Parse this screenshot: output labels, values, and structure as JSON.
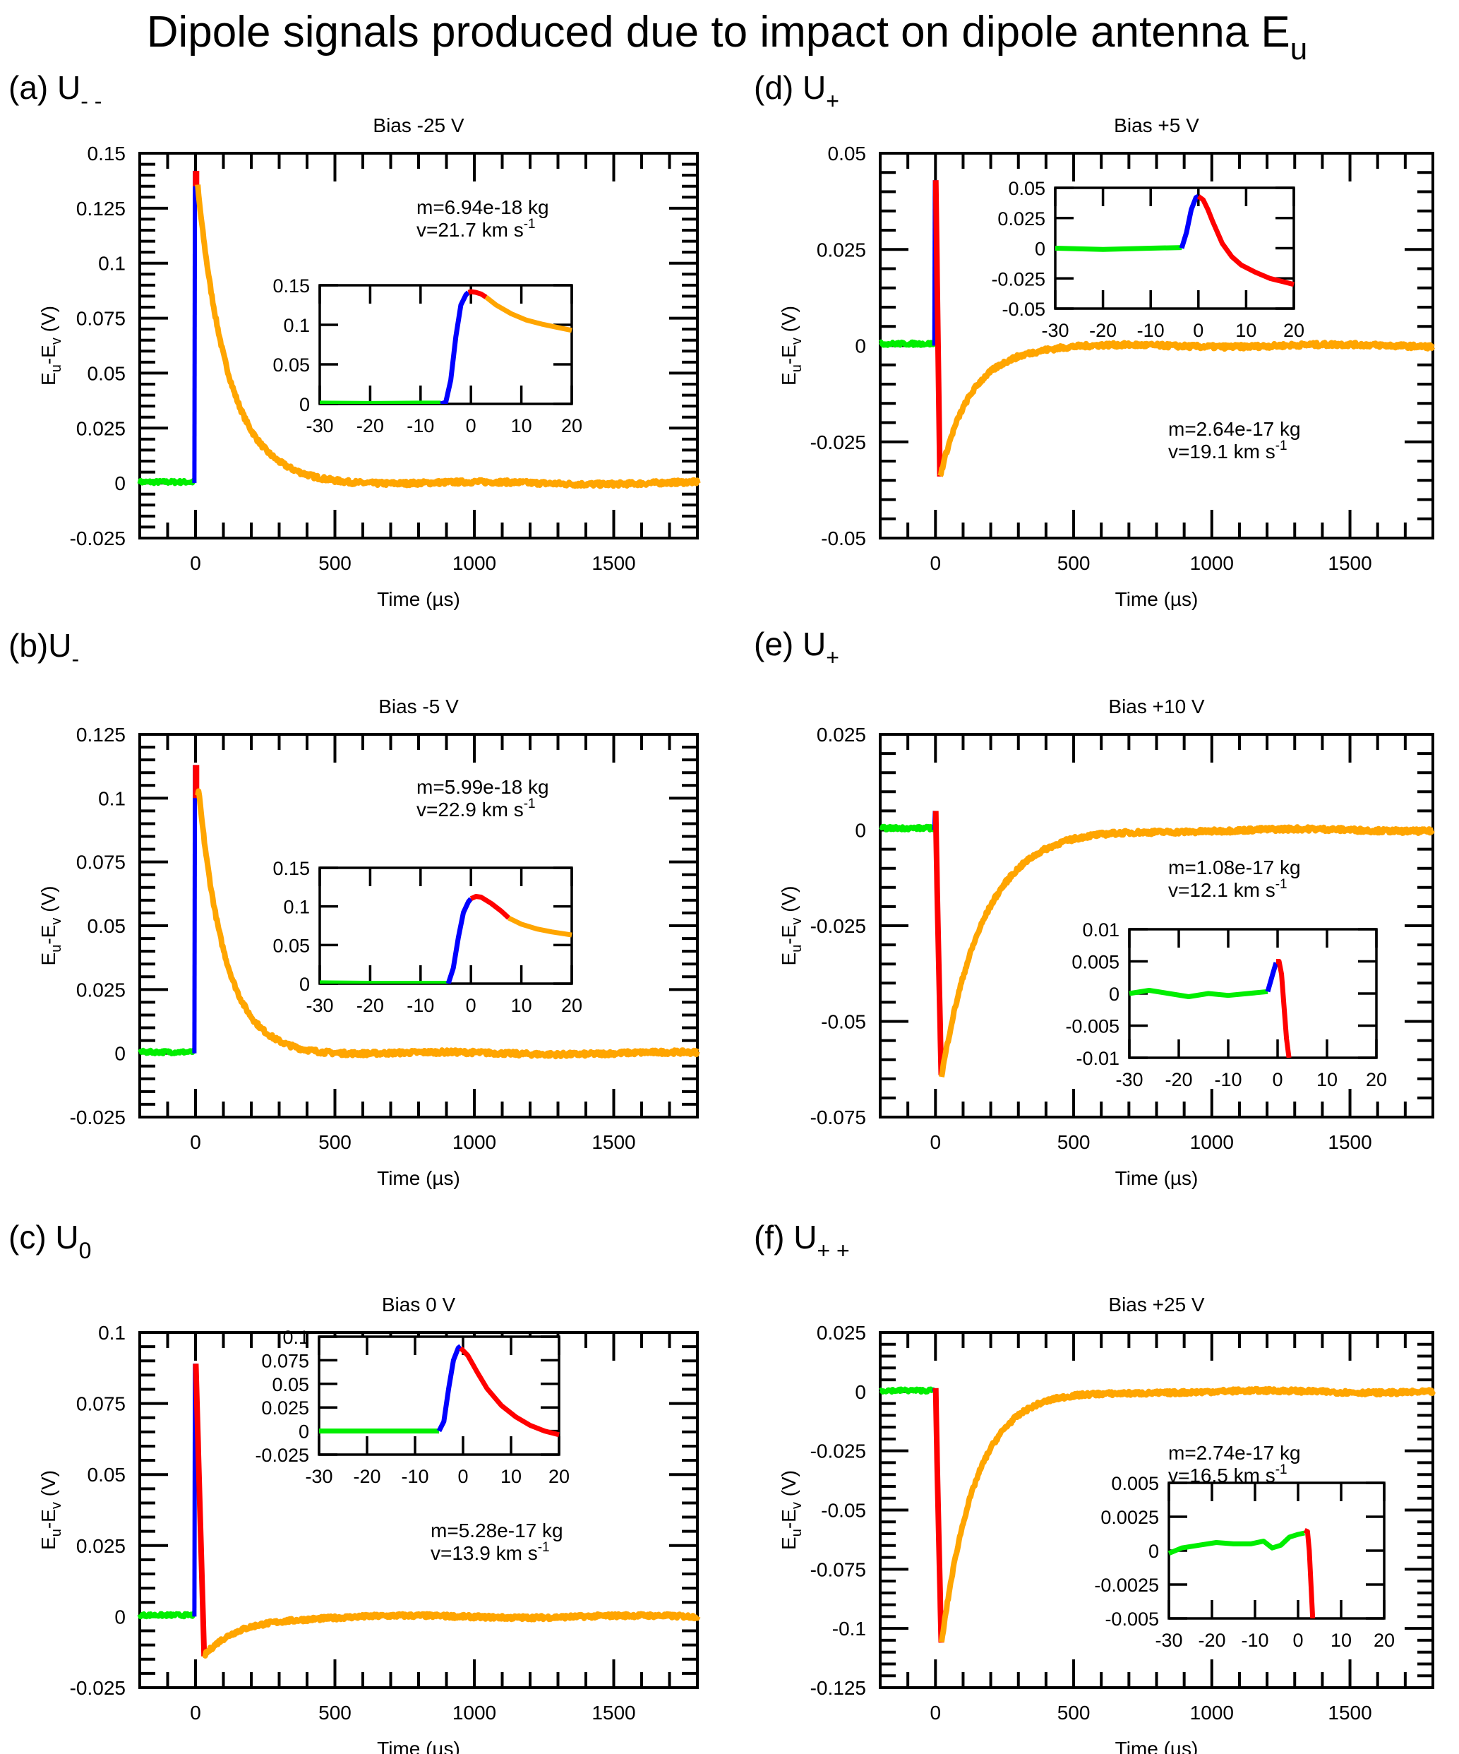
{
  "figure": {
    "title": "Dipole signals produced due to impact on dipole antenna E",
    "title_subscript": "u"
  },
  "colors": {
    "pre_impact": "#00ee00",
    "rise": "#0000ff",
    "peak_fit": "#ff0000",
    "decay": "#ffa500",
    "axis": "#000000"
  },
  "chart_data": [
    {
      "id": "a",
      "type": "line",
      "panel_label": "(a) U",
      "panel_label_subscript": "- -",
      "title": "Bias -25 V",
      "xlabel": "Time (µs)",
      "ylabel": "E_u-E_v (V)",
      "xlim": [
        -200,
        1800
      ],
      "ylim": [
        -0.025,
        0.15
      ],
      "xticks": [
        0,
        500,
        1000,
        1500
      ],
      "xtick_labels": [
        "0",
        "500",
        "1000",
        "1500"
      ],
      "yticks": [
        -0.025,
        0,
        0.025,
        0.05,
        0.075,
        0.1,
        0.125,
        0.15
      ],
      "ytick_labels": [
        "-0.025",
        "0",
        "0.025",
        "0.05",
        "0.075",
        "0.1",
        "0.125",
        "0.15"
      ],
      "annotation": {
        "mass": "m=6.94e-18 kg",
        "velocity": "v=21.7 km s",
        "velocity_sup": "-1"
      },
      "signal": {
        "kind": "positive_decay",
        "peak": 0.142,
        "peak_time": 0,
        "tau": 110,
        "red_end": 0.135,
        "baseline_end": 0.0005
      },
      "inset": {
        "xlim": [
          -30,
          20
        ],
        "ylim": [
          0,
          0.15
        ],
        "xticks": [
          -30,
          -20,
          -10,
          0,
          10,
          20
        ],
        "xtick_labels": [
          "-30",
          "-20",
          "-10",
          "0",
          "10",
          "20"
        ],
        "yticks": [
          0,
          0.05,
          0.1,
          0.15
        ],
        "ytick_labels": [
          "0",
          "0.05",
          "0.1",
          "0.15"
        ],
        "series": [
          {
            "name": "pre-impact",
            "color_key": "pre_impact",
            "x": [
              -30,
              -20,
              -10,
              -6
            ],
            "y": [
              0.001,
              0.0005,
              0.001,
              0.001
            ]
          },
          {
            "name": "rise",
            "color_key": "rise",
            "x": [
              -6,
              -5,
              -4,
              -3,
              -2,
              -1,
              -0.5
            ],
            "y": [
              0.0,
              0.002,
              0.03,
              0.085,
              0.125,
              0.138,
              0.141
            ]
          },
          {
            "name": "peak",
            "color_key": "peak_fit",
            "x": [
              -0.5,
              0,
              1,
              2,
              3
            ],
            "y": [
              0.141,
              0.142,
              0.141,
              0.139,
              0.135
            ]
          },
          {
            "name": "decay",
            "color_key": "decay",
            "x": [
              3,
              5,
              8,
              11,
              14,
              17,
              20
            ],
            "y": [
              0.135,
              0.125,
              0.114,
              0.106,
              0.101,
              0.097,
              0.093
            ]
          }
        ]
      }
    },
    {
      "id": "b",
      "type": "line",
      "panel_label": "(b)U",
      "panel_label_subscript": "-",
      "title": "Bias -5 V",
      "xlabel": "Time (µs)",
      "ylabel": "E_u-E_v (V)",
      "xlim": [
        -200,
        1800
      ],
      "ylim": [
        -0.025,
        0.125
      ],
      "xticks": [
        0,
        500,
        1000,
        1500
      ],
      "xtick_labels": [
        "0",
        "500",
        "1000",
        "1500"
      ],
      "yticks": [
        -0.025,
        0,
        0.025,
        0.05,
        0.075,
        0.1,
        0.125
      ],
      "ytick_labels": [
        "-0.025",
        "0",
        "0.025",
        "0.05",
        "0.075",
        "0.1",
        "0.125"
      ],
      "annotation": {
        "mass": "m=5.99e-18 kg",
        "velocity": "v=22.9 km s",
        "velocity_sup": "-1"
      },
      "signal": {
        "kind": "positive_decay",
        "peak": 0.113,
        "peak_time": 0,
        "tau": 95,
        "red_end": 0.1,
        "baseline_end": 0.0005
      },
      "inset": {
        "xlim": [
          -30,
          20
        ],
        "ylim": [
          0,
          0.15
        ],
        "xticks": [
          -30,
          -20,
          -10,
          0,
          10,
          20
        ],
        "xtick_labels": [
          "-30",
          "-20",
          "-10",
          "0",
          "10",
          "20"
        ],
        "yticks": [
          0,
          0.05,
          0.1,
          0.15
        ],
        "ytick_labels": [
          "0",
          "0.05",
          "0.1",
          "0.15"
        ],
        "series": [
          {
            "name": "pre-impact",
            "color_key": "pre_impact",
            "x": [
              -30,
              -20,
              -10,
              -4.5
            ],
            "y": [
              0.001,
              0.0005,
              0.0005,
              0.0005
            ]
          },
          {
            "name": "rise",
            "color_key": "rise",
            "x": [
              -4.5,
              -3.5,
              -2.5,
              -1.5,
              -0.5,
              0
            ],
            "y": [
              0.0,
              0.02,
              0.06,
              0.092,
              0.106,
              0.11
            ]
          },
          {
            "name": "peak",
            "color_key": "peak_fit",
            "x": [
              0,
              1,
              2,
              4,
              6,
              7.5
            ],
            "y": [
              0.11,
              0.113,
              0.112,
              0.104,
              0.094,
              0.085
            ]
          },
          {
            "name": "decay",
            "color_key": "decay",
            "x": [
              7.5,
              10,
              13,
              16,
              20
            ],
            "y": [
              0.085,
              0.077,
              0.071,
              0.067,
              0.063
            ]
          }
        ]
      }
    },
    {
      "id": "c",
      "type": "line",
      "panel_label": "(c) U",
      "panel_label_subscript": "0",
      "title": "Bias 0 V",
      "xlabel": "Time (µs)",
      "ylabel": "E_u-E_v (V)",
      "xlim": [
        -200,
        1800
      ],
      "ylim": [
        -0.025,
        0.1
      ],
      "xticks": [
        0,
        500,
        1000,
        1500
      ],
      "xtick_labels": [
        "0",
        "500",
        "1000",
        "1500"
      ],
      "yticks": [
        -0.025,
        0,
        0.025,
        0.05,
        0.075,
        0.1
      ],
      "ytick_labels": [
        "-0.025",
        "0",
        "0.025",
        "0.05",
        "0.075",
        "0.1"
      ],
      "annotation": {
        "mass": "m=5.28e-17 kg",
        "velocity": "v=13.9 km s",
        "velocity_sup": "-1"
      },
      "signal": {
        "kind": "bipolar_pos",
        "peak": 0.089,
        "trough": -0.014,
        "trough_time": 30,
        "tau": 120
      },
      "inset": {
        "xlim": [
          -30,
          20
        ],
        "ylim": [
          -0.025,
          0.1
        ],
        "xticks": [
          -30,
          -20,
          -10,
          0,
          10,
          20
        ],
        "xtick_labels": [
          "-30",
          "-20",
          "-10",
          "0",
          "10",
          "20"
        ],
        "yticks": [
          -0.025,
          0,
          0.025,
          0.05,
          0.075,
          0.1
        ],
        "ytick_labels": [
          "-0.025",
          "0",
          "0.025",
          "0.05",
          "0.075",
          "0.1"
        ],
        "series": [
          {
            "name": "pre-impact",
            "color_key": "pre_impact",
            "x": [
              -30,
              -20,
              -10,
              -5
            ],
            "y": [
              0.0,
              0.0,
              0.0,
              0.0
            ]
          },
          {
            "name": "rise",
            "color_key": "rise",
            "x": [
              -5,
              -4,
              -3,
              -2,
              -1,
              -0.5
            ],
            "y": [
              0.0,
              0.01,
              0.045,
              0.075,
              0.088,
              0.09
            ]
          },
          {
            "name": "peak",
            "color_key": "peak_fit",
            "x": [
              -0.5,
              1,
              3,
              5,
              8,
              11,
              14,
              17,
              20
            ],
            "y": [
              0.088,
              0.08,
              0.062,
              0.045,
              0.027,
              0.015,
              0.006,
              0.0,
              -0.004
            ]
          }
        ]
      }
    },
    {
      "id": "d",
      "type": "line",
      "panel_label": "(d) U",
      "panel_label_subscript": "+",
      "title": "Bias +5 V",
      "xlabel": "Time (µs)",
      "ylabel": "E_u-E_v (V)",
      "xlim": [
        -200,
        1800
      ],
      "ylim": [
        -0.05,
        0.05
      ],
      "xticks": [
        0,
        500,
        1000,
        1500
      ],
      "xtick_labels": [
        "0",
        "500",
        "1000",
        "1500"
      ],
      "yticks": [
        -0.05,
        -0.025,
        0,
        0.025,
        0.05
      ],
      "ytick_labels": [
        "-0.05",
        "-0.025",
        "0",
        "0.025",
        "0.05"
      ],
      "annotation": {
        "mass": "m=2.64e-17 kg",
        "velocity": "v=19.1 km s",
        "velocity_sup": "-1"
      },
      "signal": {
        "kind": "bipolar_pos",
        "peak": 0.043,
        "trough": -0.034,
        "trough_time": 15,
        "tau": 110
      },
      "inset": {
        "xlim": [
          -30,
          20
        ],
        "ylim": [
          -0.05,
          0.05
        ],
        "xticks": [
          -30,
          -20,
          -10,
          0,
          10,
          20
        ],
        "xtick_labels": [
          "-30",
          "-20",
          "-10",
          "0",
          "10",
          "20"
        ],
        "yticks": [
          -0.05,
          -0.025,
          0,
          0.025,
          0.05
        ],
        "ytick_labels": [
          "-0.05",
          "-0.025",
          "0",
          "0.025",
          "0.05"
        ],
        "series": [
          {
            "name": "pre-impact",
            "color_key": "pre_impact",
            "x": [
              -30,
              -20,
              -10,
              -3.5
            ],
            "y": [
              0.0,
              -0.001,
              0.0,
              0.0005
            ]
          },
          {
            "name": "rise",
            "color_key": "rise",
            "x": [
              -3.5,
              -2.5,
              -1.5,
              -0.5,
              0
            ],
            "y": [
              0.0,
              0.013,
              0.032,
              0.042,
              0.043
            ]
          },
          {
            "name": "peak",
            "color_key": "peak_fit",
            "x": [
              0,
              1,
              2,
              3,
              5,
              7,
              9,
              12,
              15,
              18,
              20
            ],
            "y": [
              0.043,
              0.04,
              0.032,
              0.022,
              0.004,
              -0.007,
              -0.014,
              -0.02,
              -0.025,
              -0.028,
              -0.03
            ]
          }
        ]
      }
    },
    {
      "id": "e",
      "type": "line",
      "panel_label": "(e) U",
      "panel_label_subscript": "+",
      "title": "Bias +10 V",
      "xlabel": "Time (µs)",
      "ylabel": "E_u-E_v (V)",
      "xlim": [
        -200,
        1800
      ],
      "ylim": [
        -0.075,
        0.025
      ],
      "xticks": [
        0,
        500,
        1000,
        1500
      ],
      "xtick_labels": [
        "0",
        "500",
        "1000",
        "1500"
      ],
      "yticks": [
        -0.075,
        -0.05,
        -0.025,
        0,
        0.025
      ],
      "ytick_labels": [
        "-0.075",
        "-0.05",
        "-0.025",
        "0",
        "0.025"
      ],
      "annotation": {
        "mass": "m=1.08e-17 kg",
        "velocity": "v=12.1 km s",
        "velocity_sup": "-1"
      },
      "signal": {
        "kind": "negative",
        "peak": 0.005,
        "trough": -0.064,
        "trough_time": 20,
        "tau": 150
      },
      "inset": {
        "xlim": [
          -30,
          20
        ],
        "ylim": [
          -0.01,
          0.01
        ],
        "xticks": [
          -30,
          -20,
          -10,
          0,
          10,
          20
        ],
        "xtick_labels": [
          "-30",
          "-20",
          "-10",
          "0",
          "10",
          "20"
        ],
        "yticks": [
          -0.01,
          -0.005,
          0,
          0.005,
          0.01
        ],
        "ytick_labels": [
          "-0.01",
          "-0.005",
          "0",
          "0.005",
          "0.01"
        ],
        "series": [
          {
            "name": "pre-impact",
            "color_key": "pre_impact",
            "x": [
              -30,
              -26,
              -22,
              -18,
              -14,
              -10,
              -6,
              -2
            ],
            "y": [
              0.0,
              0.0005,
              0.0,
              -0.0005,
              0.0,
              -0.0003,
              0.0,
              0.0003
            ]
          },
          {
            "name": "rise",
            "color_key": "rise",
            "x": [
              -2,
              -1,
              -0.3
            ],
            "y": [
              0.0003,
              0.003,
              0.0048
            ]
          },
          {
            "name": "peak",
            "color_key": "peak_fit",
            "x": [
              -0.3,
              0.3,
              0.8,
              1.3,
              1.8,
              2.3
            ],
            "y": [
              0.005,
              0.005,
              0.003,
              -0.002,
              -0.007,
              -0.01
            ]
          }
        ]
      }
    },
    {
      "id": "f",
      "type": "line",
      "panel_label": "(f) U",
      "panel_label_subscript": "+ +",
      "title": "Bias +25 V",
      "xlabel": "Time (µs)",
      "ylabel": "E_u-E_v (V)",
      "xlim": [
        -200,
        1800
      ],
      "ylim": [
        -0.125,
        0.025
      ],
      "xticks": [
        0,
        500,
        1000,
        1500
      ],
      "xtick_labels": [
        "0",
        "500",
        "1000",
        "1500"
      ],
      "yticks": [
        -0.125,
        -0.1,
        -0.075,
        -0.05,
        -0.025,
        0,
        0.025
      ],
      "ytick_labels": [
        "-0.125",
        "-0.1",
        "-0.075",
        "-0.05",
        "-0.025",
        "0",
        "0.025"
      ],
      "annotation": {
        "mass": "m=2.74e-17 kg",
        "velocity": "v=16.5 km s",
        "velocity_sup": "-1"
      },
      "signal": {
        "kind": "negative",
        "peak": 0.0015,
        "trough": -0.106,
        "trough_time": 20,
        "tau": 120
      },
      "inset": {
        "xlim": [
          -30,
          20
        ],
        "ylim": [
          -0.005,
          0.005
        ],
        "xticks": [
          -30,
          -20,
          -10,
          0,
          10,
          20
        ],
        "xtick_labels": [
          "-30",
          "-20",
          "-10",
          "0",
          "10",
          "20"
        ],
        "yticks": [
          -0.005,
          -0.0025,
          0,
          0.0025,
          0.005
        ],
        "ytick_labels": [
          "-0.005",
          "-0.0025",
          "0",
          "0.0025",
          "0.005"
        ],
        "series": [
          {
            "name": "pre-impact",
            "color_key": "pre_impact",
            "x": [
              -30,
              -27,
              -23,
              -19,
              -15,
              -11,
              -8,
              -6,
              -4,
              -2,
              0,
              1.5
            ],
            "y": [
              -0.0002,
              0.0002,
              0.0004,
              0.0006,
              0.0005,
              0.0005,
              0.0007,
              0.0002,
              0.0004,
              0.001,
              0.0012,
              0.0013
            ]
          },
          {
            "name": "peak",
            "color_key": "peak_fit",
            "x": [
              1.5,
              2.2,
              2.6,
              3.0,
              3.4
            ],
            "y": [
              0.0015,
              0.0014,
              0.0,
              -0.0025,
              -0.005
            ]
          }
        ]
      }
    }
  ]
}
